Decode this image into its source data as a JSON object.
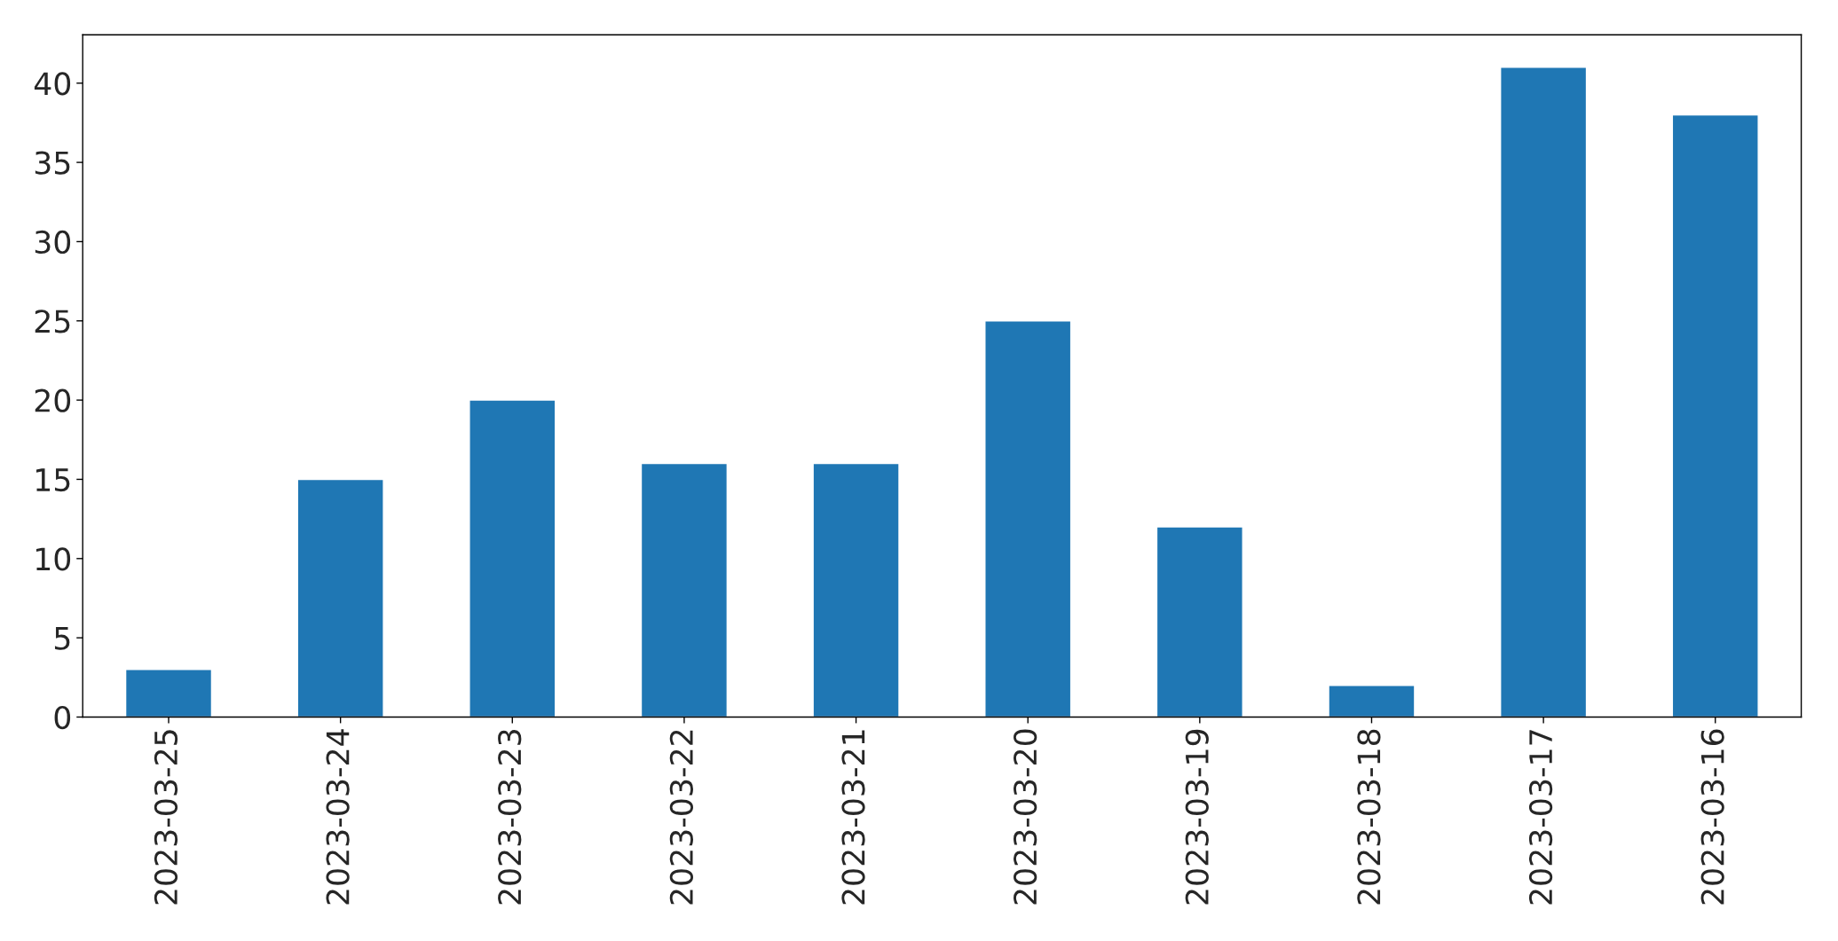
{
  "chart_data": {
    "type": "bar",
    "categories": [
      "2023-03-25",
      "2023-03-24",
      "2023-03-23",
      "2023-03-22",
      "2023-03-21",
      "2023-03-20",
      "2023-03-19",
      "2023-03-18",
      "2023-03-17",
      "2023-03-16"
    ],
    "values": [
      3,
      15,
      20,
      16,
      16,
      25,
      12,
      2,
      41,
      38
    ],
    "color": "#1f77b4",
    "ylim": [
      0,
      43.05
    ],
    "yticks": [
      0,
      5,
      10,
      15,
      20,
      25,
      30,
      35,
      40
    ],
    "grid": false,
    "legend": false
  }
}
